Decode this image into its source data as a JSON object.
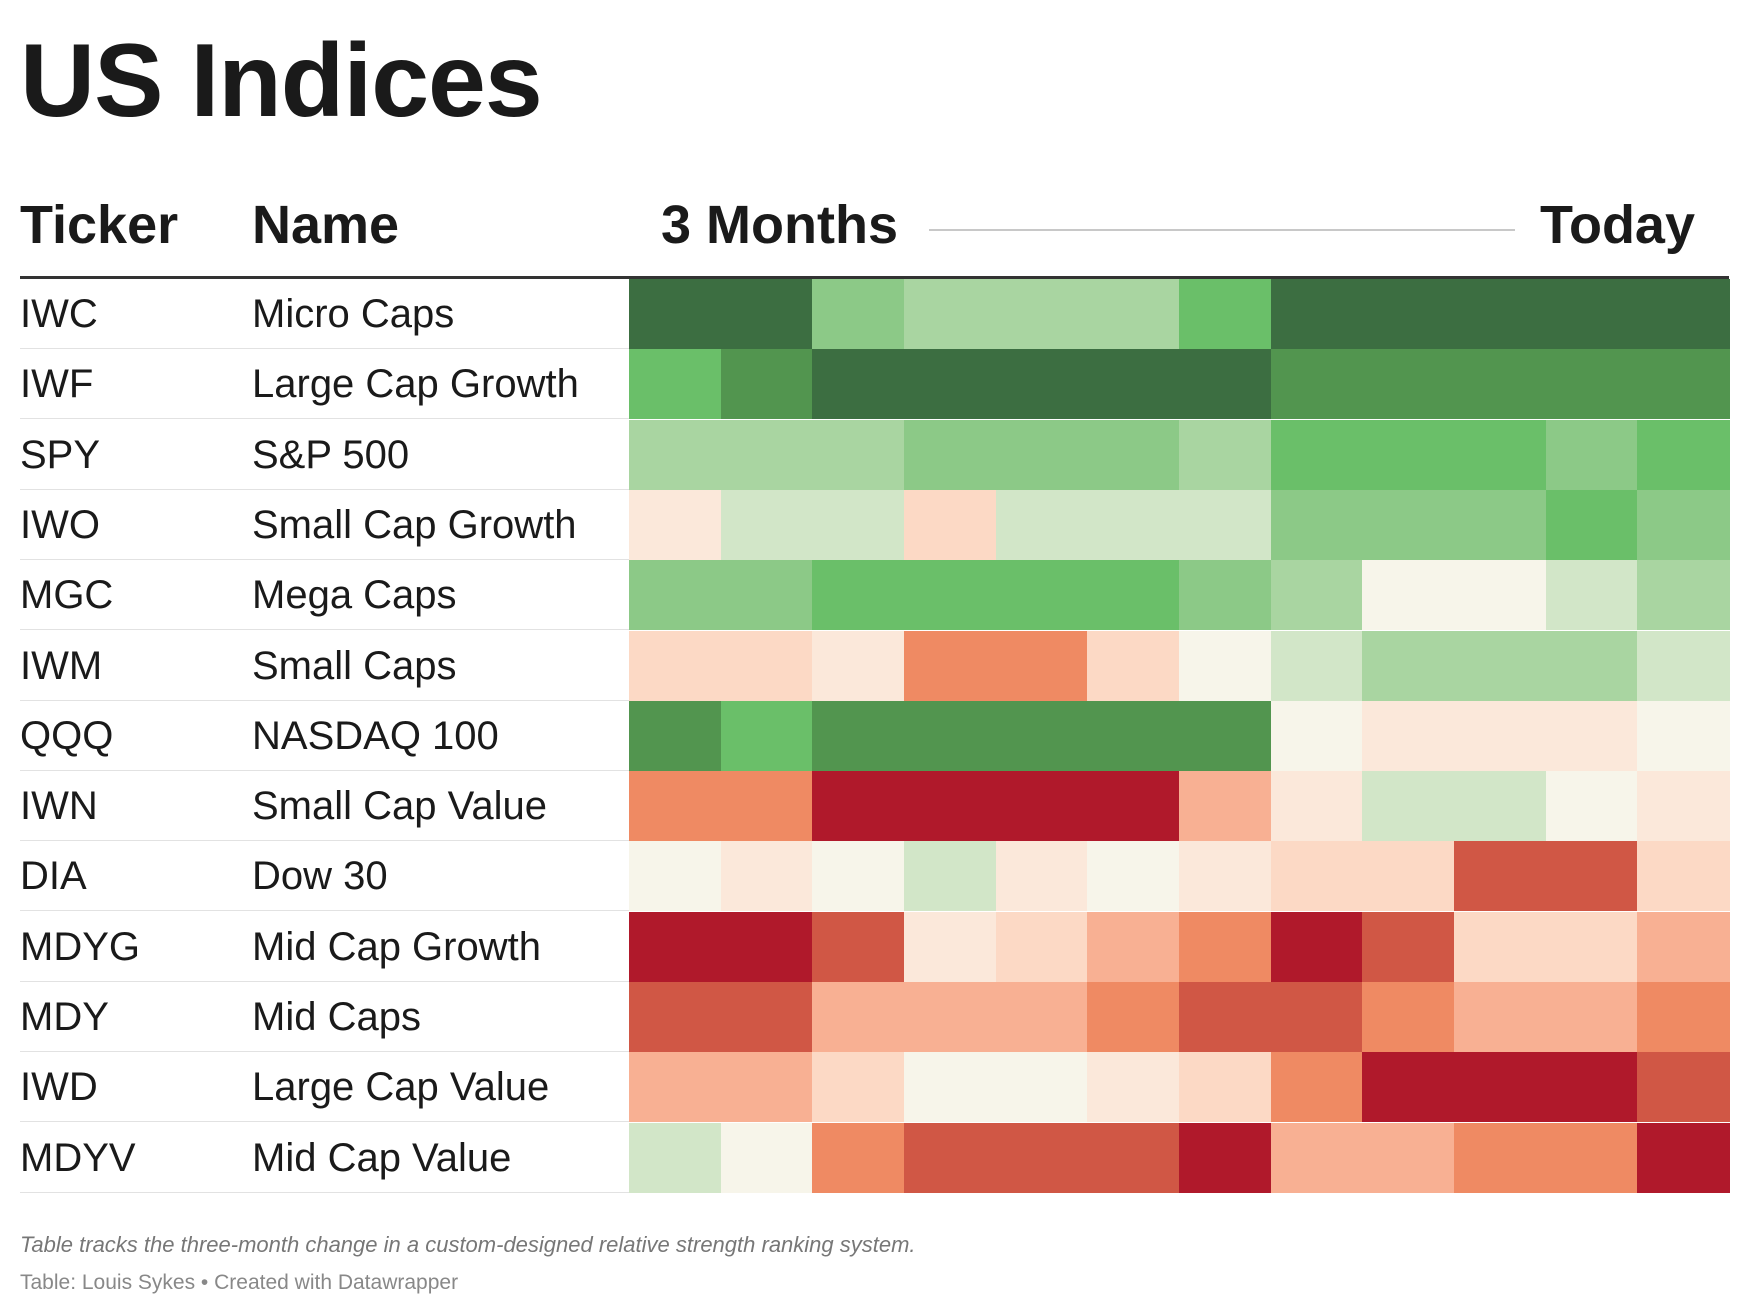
{
  "header": {
    "title": "US Indices"
  },
  "table": {
    "columns": {
      "ticker": "Ticker",
      "name": "Name",
      "start": "3 Months",
      "end": "Today"
    },
    "rows": [
      {
        "ticker": "IWC",
        "name": "Micro Caps",
        "colors": [
          "#3c6e41",
          "#3c6e41",
          "#8cc987",
          "#a9d5a1",
          "#a9d5a1",
          "#a9d5a1",
          "#6abf69",
          "#3c6e41",
          "#3c6e41",
          "#3c6e41",
          "#3c6e41",
          "#3c6e41"
        ]
      },
      {
        "ticker": "IWF",
        "name": "Large Cap Growth",
        "colors": [
          "#6abf69",
          "#52954f",
          "#3c6e41",
          "#3c6e41",
          "#3c6e41",
          "#3c6e41",
          "#3c6e41",
          "#52954f",
          "#52954f",
          "#52954f",
          "#52954f",
          "#52954f"
        ]
      },
      {
        "ticker": "SPY",
        "name": "S&P 500",
        "colors": [
          "#a9d5a1",
          "#a9d5a1",
          "#a9d5a1",
          "#8cc987",
          "#8cc987",
          "#8cc987",
          "#a9d5a1",
          "#6abf69",
          "#6abf69",
          "#6abf69",
          "#8cc987",
          "#6abf69"
        ]
      },
      {
        "ticker": "IWO",
        "name": "Small Cap Growth",
        "colors": [
          "#fbe8da",
          "#d2e6c8",
          "#d2e6c8",
          "#fcd9c5",
          "#d2e6c8",
          "#d2e6c8",
          "#d2e6c8",
          "#8cc987",
          "#8cc987",
          "#8cc987",
          "#6abf69",
          "#8cc987"
        ]
      },
      {
        "ticker": "MGC",
        "name": "Mega Caps",
        "colors": [
          "#8cc987",
          "#8cc987",
          "#6abf69",
          "#6abf69",
          "#6abf69",
          "#6abf69",
          "#8cc987",
          "#a9d5a1",
          "#f7f5ea",
          "#f7f5ea",
          "#d2e6c8",
          "#a9d5a1"
        ]
      },
      {
        "ticker": "IWM",
        "name": "Small Caps",
        "colors": [
          "#fcd9c5",
          "#fcd9c5",
          "#fbe8da",
          "#ef8a63",
          "#ef8a63",
          "#fcd9c5",
          "#f7f5ea",
          "#d2e6c8",
          "#a9d5a1",
          "#a9d5a1",
          "#a9d5a1",
          "#d2e6c8"
        ]
      },
      {
        "ticker": "QQQ",
        "name": "NASDAQ 100",
        "colors": [
          "#52954f",
          "#6abf69",
          "#52954f",
          "#52954f",
          "#52954f",
          "#52954f",
          "#52954f",
          "#f7f5ea",
          "#fbe8da",
          "#fbe8da",
          "#fbe8da",
          "#f7f5ea"
        ]
      },
      {
        "ticker": "IWN",
        "name": "Small Cap Value",
        "colors": [
          "#ef8a63",
          "#ef8a63",
          "#b0192b",
          "#b0192b",
          "#b0192b",
          "#b0192b",
          "#f8b093",
          "#fbe8da",
          "#d2e6c8",
          "#d2e6c8",
          "#f7f5ea",
          "#fbe8da"
        ]
      },
      {
        "ticker": "DIA",
        "name": "Dow 30",
        "colors": [
          "#f7f5ea",
          "#fbe8da",
          "#f7f5ea",
          "#d2e6c8",
          "#fbe8da",
          "#f7f5ea",
          "#fbe8da",
          "#fcd9c5",
          "#fcd9c5",
          "#d05745",
          "#d05745",
          "#fcd9c5"
        ]
      },
      {
        "ticker": "MDYG",
        "name": "Mid Cap Growth",
        "colors": [
          "#b0192b",
          "#b0192b",
          "#d05745",
          "#fbe8da",
          "#fcd9c5",
          "#f8b093",
          "#ef8a63",
          "#b0192b",
          "#d05745",
          "#fcd9c5",
          "#fcd9c5",
          "#f8b093"
        ]
      },
      {
        "ticker": "MDY",
        "name": "Mid Caps",
        "colors": [
          "#d05745",
          "#d05745",
          "#f8b093",
          "#f8b093",
          "#f8b093",
          "#ef8a63",
          "#d05745",
          "#d05745",
          "#ef8a63",
          "#f8b093",
          "#f8b093",
          "#ef8a63"
        ]
      },
      {
        "ticker": "IWD",
        "name": "Large Cap Value",
        "colors": [
          "#f8b093",
          "#f8b093",
          "#fcd9c5",
          "#f7f5ea",
          "#f7f5ea",
          "#fbe8da",
          "#fcd9c5",
          "#ef8a63",
          "#b0192b",
          "#b0192b",
          "#b0192b",
          "#d05745"
        ]
      },
      {
        "ticker": "MDYV",
        "name": "Mid Cap Value",
        "colors": [
          "#d2e6c8",
          "#f7f5ea",
          "#ef8a63",
          "#d05745",
          "#d05745",
          "#d05745",
          "#b0192b",
          "#f8b093",
          "#f8b093",
          "#ef8a63",
          "#ef8a63",
          "#b0192b"
        ]
      }
    ]
  },
  "footer": {
    "note": "Table tracks the three-month change in a custom-designed relative strength ranking system.",
    "source": "Table: Louis Sykes • Created with Datawrapper"
  }
}
